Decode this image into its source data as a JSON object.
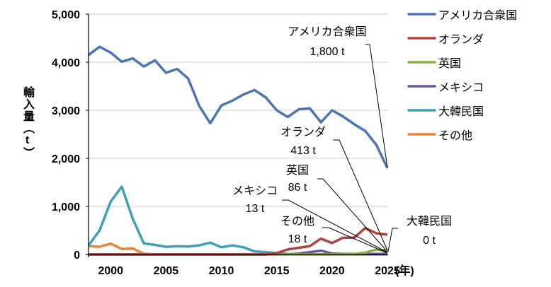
{
  "chart_data": {
    "type": "line",
    "ylabel": "輸入量（t）",
    "xlabel": "(年)",
    "ylim": [
      0,
      5000
    ],
    "xlim": [
      1998,
      2025
    ],
    "yticks": [
      "0",
      "1,000",
      "2,000",
      "3,000",
      "4,000",
      "5,000"
    ],
    "xticks": [
      "2000",
      "2005",
      "2010",
      "2015",
      "2020",
      "2025"
    ],
    "grid": "horizontal",
    "legend_position": "right",
    "x": [
      1998,
      1999,
      2000,
      2001,
      2002,
      2003,
      2004,
      2005,
      2006,
      2007,
      2008,
      2009,
      2010,
      2011,
      2012,
      2013,
      2014,
      2015,
      2016,
      2017,
      2018,
      2019,
      2020,
      2021,
      2022,
      2023,
      2024,
      2025
    ],
    "series": [
      {
        "name": "アメリカ合衆国",
        "color": "#4a76b4",
        "values": [
          4150,
          4320,
          4200,
          4010,
          4080,
          3910,
          4040,
          3780,
          3860,
          3660,
          3090,
          2730,
          3100,
          3200,
          3330,
          3420,
          3270,
          3000,
          2860,
          3020,
          3040,
          2750,
          3000,
          2870,
          2710,
          2570,
          2280,
          1800
        ]
      },
      {
        "name": "オランダ",
        "color": "#b5413f",
        "values": [
          0,
          0,
          0,
          0,
          0,
          0,
          0,
          0,
          0,
          0,
          0,
          0,
          0,
          0,
          0,
          0,
          0,
          30,
          105,
          140,
          175,
          330,
          240,
          350,
          350,
          550,
          440,
          413
        ]
      },
      {
        "name": "英国",
        "color": "#8aae4a",
        "values": [
          0,
          0,
          0,
          0,
          0,
          0,
          0,
          0,
          0,
          0,
          0,
          0,
          0,
          0,
          0,
          0,
          0,
          0,
          0,
          0,
          0,
          0,
          0,
          0,
          10,
          40,
          100,
          86
        ]
      },
      {
        "name": "メキシコ",
        "color": "#6f559a",
        "values": [
          0,
          0,
          0,
          0,
          0,
          0,
          0,
          0,
          0,
          0,
          0,
          0,
          0,
          0,
          0,
          0,
          0,
          0,
          0,
          20,
          50,
          80,
          20,
          10,
          10,
          10,
          10,
          13
        ]
      },
      {
        "name": "大韓民国",
        "color": "#3ea0b8",
        "values": [
          190,
          500,
          1100,
          1410,
          740,
          230,
          200,
          160,
          170,
          165,
          190,
          245,
          150,
          190,
          150,
          65,
          50,
          30,
          10,
          0,
          0,
          0,
          0,
          0,
          0,
          0,
          0,
          0
        ]
      },
      {
        "name": "その他",
        "color": "#e8853a",
        "values": [
          175,
          160,
          225,
          115,
          125,
          15,
          5,
          5,
          5,
          5,
          5,
          5,
          5,
          5,
          5,
          5,
          5,
          5,
          5,
          5,
          5,
          5,
          5,
          5,
          5,
          5,
          5,
          18
        ]
      }
    ],
    "annotations": [
      {
        "series": "アメリカ合衆国",
        "label": "アメリカ合衆国",
        "value": "1,800 t"
      },
      {
        "series": "オランダ",
        "label": "オランダ",
        "value": "413 t"
      },
      {
        "series": "英国",
        "label": "英国",
        "value": "86 t"
      },
      {
        "series": "メキシコ",
        "label": "メキシコ",
        "value": "13 t"
      },
      {
        "series": "その他",
        "label": "その他",
        "value": "18 t"
      },
      {
        "series": "大韓民国",
        "label": "大韓民国",
        "value": "0 t"
      }
    ]
  }
}
